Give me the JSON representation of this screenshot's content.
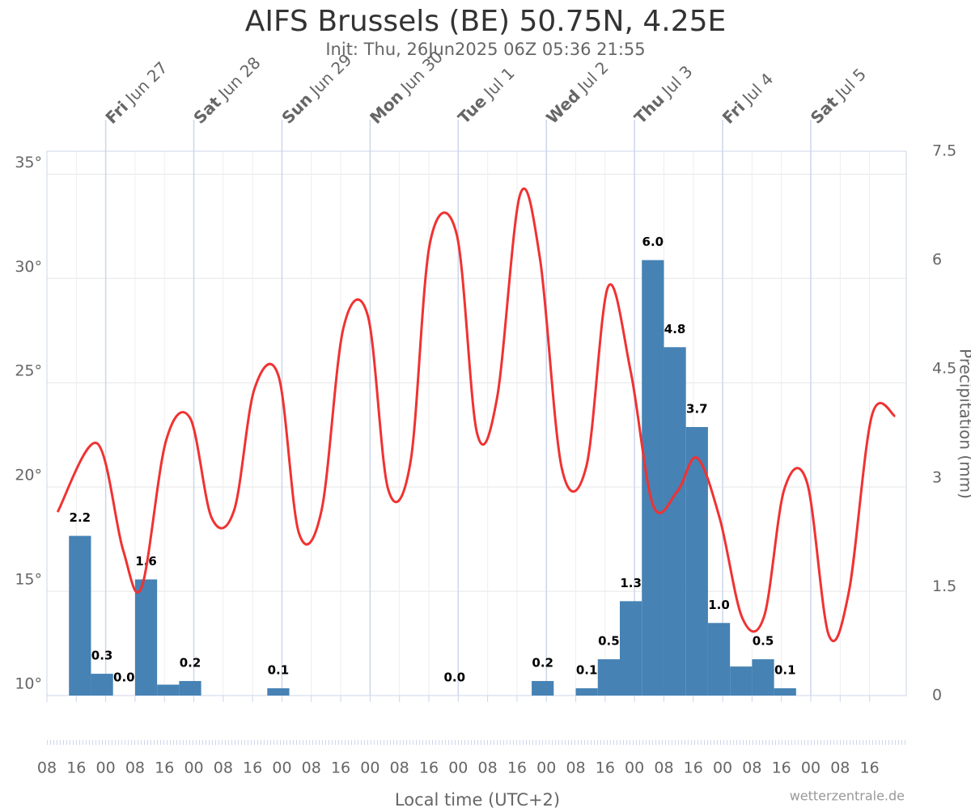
{
  "chart_data": {
    "type": "combo",
    "title": "AIFS Brussels (BE) 50.75N, 4.25E",
    "subtitle": "Init: Thu, 26Jun2025 06Z 05:36 21:55",
    "x_label": "Local time (UTC+2)",
    "y2_label": "Precipitation (mm)",
    "credit": "wetterzentrale.de",
    "xlim": [
      8,
      242
    ],
    "xticks": [
      {
        "value": 8,
        "label": "08"
      },
      {
        "value": 16,
        "label": "16"
      },
      {
        "value": 24,
        "label": "00"
      },
      {
        "value": 32,
        "label": "08"
      },
      {
        "value": 40,
        "label": "16"
      },
      {
        "value": 48,
        "label": "00"
      },
      {
        "value": 56,
        "label": "08"
      },
      {
        "value": 64,
        "label": "16"
      },
      {
        "value": 72,
        "label": "00"
      },
      {
        "value": 80,
        "label": "08"
      },
      {
        "value": 88,
        "label": "16"
      },
      {
        "value": 96,
        "label": "00"
      },
      {
        "value": 104,
        "label": "08"
      },
      {
        "value": 112,
        "label": "16"
      },
      {
        "value": 120,
        "label": "00"
      },
      {
        "value": 128,
        "label": "08"
      },
      {
        "value": 136,
        "label": "16"
      },
      {
        "value": 144,
        "label": "00"
      },
      {
        "value": 152,
        "label": "08"
      },
      {
        "value": 160,
        "label": "16"
      },
      {
        "value": 168,
        "label": "00"
      },
      {
        "value": 176,
        "label": "08"
      },
      {
        "value": 184,
        "label": "16"
      },
      {
        "value": 192,
        "label": "00"
      },
      {
        "value": 200,
        "label": "08"
      },
      {
        "value": 208,
        "label": "16"
      },
      {
        "value": 216,
        "label": "00"
      },
      {
        "value": 224,
        "label": "08"
      },
      {
        "value": 232,
        "label": "16"
      }
    ],
    "day_ticks": [
      {
        "value": 24,
        "weekday": "Fri",
        "date": "Jun 27"
      },
      {
        "value": 48,
        "weekday": "Sat",
        "date": "Jun 28"
      },
      {
        "value": 72,
        "weekday": "Sun",
        "date": "Jun 29"
      },
      {
        "value": 96,
        "weekday": "Mon",
        "date": "Jun 30"
      },
      {
        "value": 120,
        "weekday": "Tue",
        "date": "Jul 1"
      },
      {
        "value": 144,
        "weekday": "Wed",
        "date": "Jul 2"
      },
      {
        "value": 168,
        "weekday": "Thu",
        "date": "Jul 3"
      },
      {
        "value": 192,
        "weekday": "Fri",
        "date": "Jul 4"
      },
      {
        "value": 216,
        "weekday": "Sat",
        "date": "Jul 5"
      }
    ],
    "ylim": [
      10,
      36.1
    ],
    "yticks": [
      {
        "value": 10,
        "label": "10°"
      },
      {
        "value": 15,
        "label": "15°"
      },
      {
        "value": 20,
        "label": "20°"
      },
      {
        "value": 25,
        "label": "25°"
      },
      {
        "value": 30,
        "label": "30°"
      },
      {
        "value": 35,
        "label": "35°"
      }
    ],
    "y2lim": [
      0,
      7.5
    ],
    "y2ticks": [
      0,
      1.5,
      3,
      4.5,
      6,
      7.5
    ],
    "grid": true,
    "series": [
      {
        "name": "Precipitation",
        "type": "bar",
        "axis": "y2",
        "color": "#4682b4",
        "bar_width": 6,
        "x": [
          17,
          23,
          29,
          35,
          41,
          47,
          71,
          119,
          143,
          155,
          161,
          167,
          173,
          179,
          185,
          191,
          197,
          203,
          209
        ],
        "values": [
          2.2,
          0.3,
          0.0,
          1.6,
          0.15,
          0.2,
          0.1,
          0.0,
          0.2,
          0.1,
          0.5,
          1.3,
          6.0,
          4.8,
          3.7,
          1.0,
          0.4,
          0.5,
          0.1
        ],
        "value_labels": [
          "2.2",
          "0.3",
          "0.0",
          "1.6",
          null,
          "0.2",
          "0.1",
          "0.0",
          "0.2",
          "0.1",
          "0.5",
          "1.3",
          "6.0",
          "4.8",
          "3.7",
          "1.0",
          null,
          "0.5",
          "0.1"
        ]
      },
      {
        "name": "Temperature",
        "type": "line",
        "color": "#f03232",
        "x": [
          10.9,
          21.6,
          28.7,
          33.8,
          40.4,
          47,
          52.9,
          59,
          64.5,
          71.1,
          76.6,
          82.8,
          88.7,
          95.4,
          100.9,
          107,
          112.3,
          119.6,
          125.1,
          130.6,
          136.8,
          142.3,
          148.2,
          154.9,
          160.8,
          167,
          173.1,
          179.7,
          185,
          191.2,
          197.4,
          203.3,
          208.8,
          215,
          220.9,
          226.4,
          232.6,
          239
        ],
        "values": [
          18.8,
          22.1,
          17.0,
          15.2,
          22.2,
          23.3,
          18.5,
          18.9,
          24.7,
          25.3,
          17.8,
          18.9,
          27.6,
          28.2,
          19.9,
          21.2,
          31.7,
          32.1,
          22.6,
          24.3,
          34.0,
          30.9,
          20.9,
          21.0,
          29.6,
          25.5,
          19.1,
          19.8,
          21.4,
          18.5,
          13.7,
          13.8,
          19.9,
          20.2,
          12.9,
          15.0,
          23.4,
          23.4
        ]
      }
    ]
  }
}
